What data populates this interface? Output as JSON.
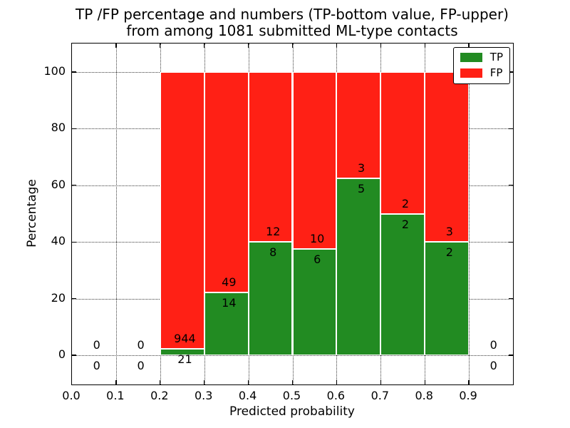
{
  "title": {
    "line1": "TP /FP percentage and numbers (TP-bottom value, FP-upper)",
    "line2": "from among 1081 submitted ML-type contacts"
  },
  "axes": {
    "x_label": "Predicted probability",
    "y_label": "Percentage",
    "x_tick_labels": [
      "0.0",
      "0.1",
      "0.2",
      "0.3",
      "0.4",
      "0.5",
      "0.6",
      "0.7",
      "0.8",
      "0.9"
    ],
    "x_tick_values": [
      0.0,
      0.1,
      0.2,
      0.3,
      0.4,
      0.5,
      0.6,
      0.7,
      0.8,
      0.9
    ],
    "y_tick_labels": [
      "0",
      "20",
      "40",
      "60",
      "80",
      "100"
    ],
    "y_tick_values": [
      0,
      20,
      40,
      60,
      80,
      100
    ]
  },
  "legend": {
    "items": [
      {
        "label": "TP",
        "color": "#228b22"
      },
      {
        "label": "FP",
        "color": "#ff2015"
      }
    ],
    "position": "upper right"
  },
  "colors": {
    "tp_green": "#228b22",
    "fp_red": "#ff2015",
    "text": "#000000",
    "background": "#ffffff"
  },
  "chart_data": {
    "type": "bar",
    "stacked": true,
    "title": "TP /FP percentage and numbers (TP-bottom value, FP-upper) from among 1081 submitted ML-type contacts",
    "total_contacts": 1081,
    "xlabel": "Predicted probability",
    "ylabel": "Percentage",
    "xlim": [
      0.0,
      1.0
    ],
    "ylim": [
      -10.3,
      110.1
    ],
    "grid": true,
    "grid_style": "dotted",
    "legend_position": "upper right",
    "bin_width": 0.1,
    "series": [
      {
        "name": "TP",
        "color": "#228b22",
        "stack_order": "bottom"
      },
      {
        "name": "FP",
        "color": "#ff2015",
        "stack_order": "top"
      }
    ],
    "bins": [
      {
        "x0": 0.0,
        "x1": 0.1,
        "tp": 0,
        "fp": 0,
        "tp_pct": 0,
        "fp_pct": 0
      },
      {
        "x0": 0.1,
        "x1": 0.2,
        "tp": 0,
        "fp": 0,
        "tp_pct": 0,
        "fp_pct": 0
      },
      {
        "x0": 0.2,
        "x1": 0.3,
        "tp": 21,
        "fp": 944,
        "tp_pct": 2.18,
        "fp_pct": 97.82
      },
      {
        "x0": 0.3,
        "x1": 0.4,
        "tp": 14,
        "fp": 49,
        "tp_pct": 22.22,
        "fp_pct": 77.78
      },
      {
        "x0": 0.4,
        "x1": 0.5,
        "tp": 8,
        "fp": 12,
        "tp_pct": 40.0,
        "fp_pct": 60.0
      },
      {
        "x0": 0.5,
        "x1": 0.6,
        "tp": 6,
        "fp": 10,
        "tp_pct": 37.5,
        "fp_pct": 62.5
      },
      {
        "x0": 0.6,
        "x1": 0.7,
        "tp": 5,
        "fp": 3,
        "tp_pct": 62.5,
        "fp_pct": 37.5
      },
      {
        "x0": 0.7,
        "x1": 0.8,
        "tp": 2,
        "fp": 2,
        "tp_pct": 50.0,
        "fp_pct": 50.0
      },
      {
        "x0": 0.8,
        "x1": 0.9,
        "tp": 2,
        "fp": 3,
        "tp_pct": 40.0,
        "fp_pct": 60.0
      },
      {
        "x0": 0.9,
        "x1": 1.0,
        "tp": 0,
        "fp": 0,
        "tp_pct": 0,
        "fp_pct": 0
      }
    ]
  }
}
